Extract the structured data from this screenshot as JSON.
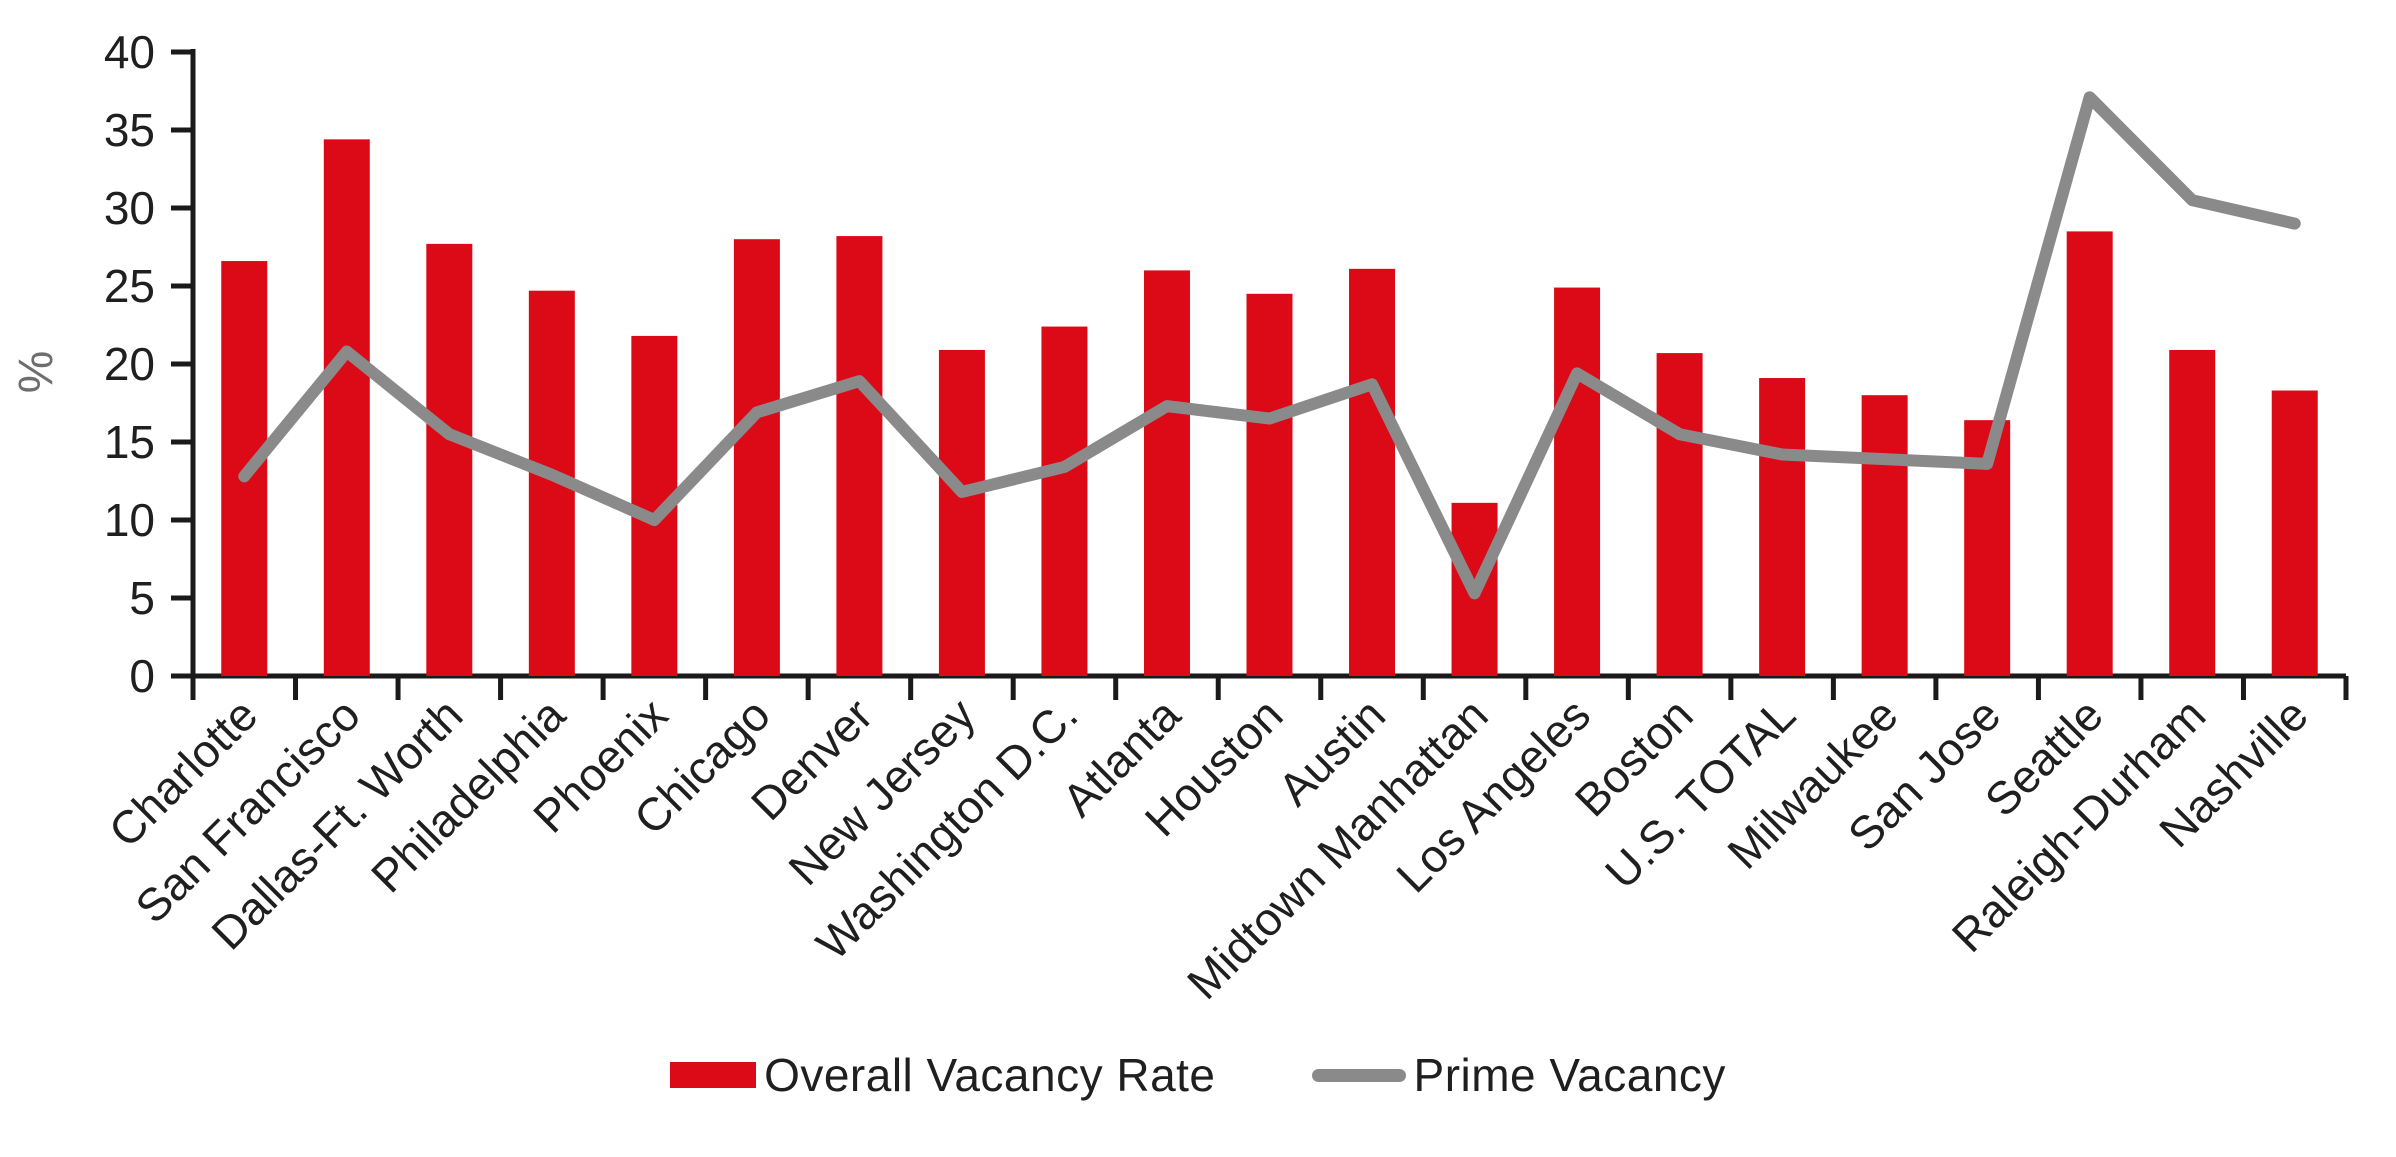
{
  "chart_data": {
    "type": "bar+line",
    "title": "",
    "xlabel": "",
    "ylabel": "%",
    "ylim": [
      0,
      40
    ],
    "ytick_step": 5,
    "grid": false,
    "legend_position": "bottom",
    "categories": [
      "Charlotte",
      "San Francisco",
      "Dallas-Ft. Worth",
      "Philadelphia",
      "Phoenix",
      "Chicago",
      "Denver",
      "New Jersey",
      "Washington D.C.",
      "Atlanta",
      "Houston",
      "Austin",
      "Midtown Manhattan",
      "Los Angeles",
      "Boston",
      "U.S. TOTAL",
      "Milwaukee",
      "San Jose",
      "Seattle",
      "Raleigh-Durham",
      "Nashville"
    ],
    "series": [
      {
        "name": "Overall Vacancy Rate",
        "type": "bar",
        "color": "#DB0A16",
        "values": [
          26.6,
          34.4,
          27.7,
          24.7,
          21.8,
          28.0,
          28.2,
          20.9,
          22.4,
          26.0,
          24.5,
          26.1,
          11.1,
          24.9,
          20.7,
          19.1,
          18.0,
          16.4,
          28.5,
          20.9,
          18.3
        ]
      },
      {
        "name": "Prime Vacancy",
        "type": "line",
        "color": "#8A8A8A",
        "values": [
          12.8,
          20.8,
          15.5,
          12.9,
          10.0,
          16.9,
          18.9,
          11.8,
          13.4,
          17.3,
          16.5,
          18.7,
          5.3,
          19.4,
          15.5,
          14.2,
          13.9,
          13.6,
          37.1,
          30.5,
          29.0
        ]
      }
    ],
    "axis_color": "#1a1a1a",
    "tick_label_color": "#1f1f1f"
  }
}
